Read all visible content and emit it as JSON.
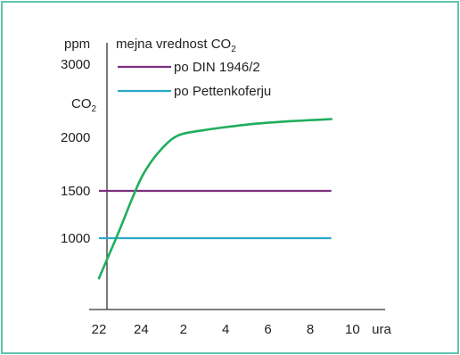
{
  "chart_data": {
    "type": "line",
    "ylabel": "ppm",
    "ylabel2": "CO",
    "ylabel2_sub": "2",
    "ylim": [
      0,
      3000
    ],
    "yticks": [
      {
        "label": "3000",
        "value": 3000
      },
      {
        "label": "2000",
        "value": 2000
      },
      {
        "label": "1500",
        "value": 1500
      },
      {
        "label": "1000",
        "value": 1000
      }
    ],
    "xticks": [
      "22",
      "24",
      "2",
      "4",
      "6",
      "8",
      "10"
    ],
    "xunit": "ura",
    "legend": {
      "title": "mejna vrednost CO",
      "title_sub": "2",
      "placement": "top-left"
    },
    "series": [
      {
        "name": "po DIN 1946/2",
        "color": "#7b2f7e",
        "type": "threshold",
        "x": [
          22,
          33
        ],
        "y": [
          1500,
          1500
        ]
      },
      {
        "name": "po Pettenkoferju",
        "color": "#2aa9c6",
        "type": "threshold",
        "x": [
          22,
          33
        ],
        "y": [
          1000,
          1000
        ]
      },
      {
        "color": "#1fae5d",
        "type": "curve",
        "x": [
          22,
          22.5,
          23,
          23.5,
          24,
          24.5,
          25,
          25.5,
          26,
          27,
          28,
          29,
          30,
          31,
          32,
          33
        ],
        "y": [
          350,
          750,
          1100,
          1380,
          1620,
          1780,
          1900,
          1990,
          2050,
          2100,
          2140,
          2175,
          2200,
          2220,
          2235,
          2250
        ]
      }
    ]
  }
}
